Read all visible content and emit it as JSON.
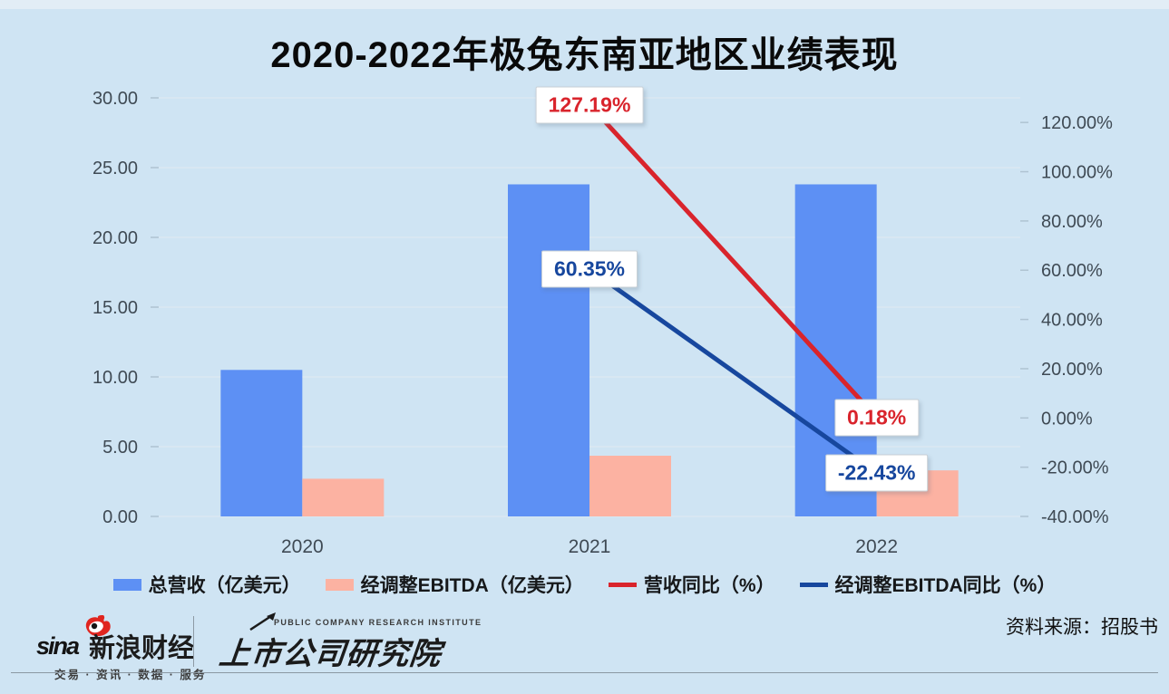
{
  "page": {
    "background_color": "#cfe4f3"
  },
  "chart_data": {
    "type": "combo",
    "title": "2020-2022年极兔东南亚地区业绩表现",
    "categories": [
      "2020",
      "2021",
      "2022"
    ],
    "series": [
      {
        "name": "总营收（亿美元）",
        "kind": "bar",
        "axis": "left",
        "color": "#5d90f4",
        "values": [
          10.5,
          23.8,
          23.8
        ]
      },
      {
        "name": "经调整EBITDA（亿美元）",
        "kind": "bar",
        "axis": "left",
        "color": "#fcb2a2",
        "values": [
          2.7,
          4.35,
          3.3
        ]
      },
      {
        "name": "营收同比（%）",
        "kind": "line",
        "axis": "right",
        "color": "#d9242c",
        "values": [
          null,
          127.19,
          0.18
        ],
        "point_labels": [
          null,
          "127.19%",
          "0.18%"
        ]
      },
      {
        "name": "经调整EBITDA同比（%）",
        "kind": "line",
        "axis": "right",
        "color": "#17479e",
        "values": [
          null,
          60.35,
          -22.43
        ],
        "point_labels": [
          null,
          "60.35%",
          "-22.43%"
        ]
      }
    ],
    "left_axis": {
      "min": 0,
      "max": 30,
      "step": 5,
      "tick_labels": [
        "0.00",
        "5.00",
        "10.00",
        "15.00",
        "20.00",
        "25.00",
        "30.00"
      ]
    },
    "right_axis": {
      "min": -40,
      "max": 130,
      "label_step": 20,
      "tick_labels": [
        "-40.00%",
        "-20.00%",
        "0.00%",
        "20.00%",
        "40.00%",
        "60.00%",
        "80.00%",
        "100.00%",
        "120.00%"
      ],
      "label_values": [
        -40,
        -20,
        0,
        20,
        40,
        60,
        80,
        100,
        120
      ]
    },
    "grid": true,
    "legend_position": "bottom",
    "axis_text_color": "#3f4a54",
    "gridline_color": "#dce8f1",
    "tick_mark_color": "#afc3d2"
  },
  "footer": {
    "sina_logo_text": "sina",
    "sina_brand": "新浪财经",
    "sina_slogan": "交易 · 资讯 · 数据 · 服务",
    "institute_en": "PUBLIC COMPANY RESEARCH INSTITUTE",
    "institute_cn": "上市公司研究院",
    "source": "资料来源：招股书"
  }
}
